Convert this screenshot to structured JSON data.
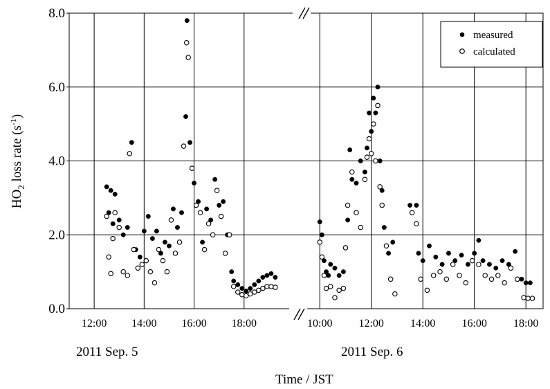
{
  "chart_data": {
    "type": "scatter",
    "ylabel_main": "HO",
    "ylabel_sub": "2",
    "ylabel_rest": " loss rate  (s",
    "ylabel_sup": "-1",
    "ylabel_end": ")",
    "xlabel": "Time / JST",
    "ylim": [
      0,
      8
    ],
    "yticks": [
      "0.0",
      "2.0",
      "4.0",
      "6.0",
      "8.0"
    ],
    "grid": true,
    "legend_position": "top-right",
    "axis_break": "//",
    "panels": [
      {
        "date_label": "2011 Sep. 5",
        "xlim": [
          "11:00",
          "20:00"
        ],
        "xticks": [
          "12:00",
          "14:00",
          "16:00",
          "18:00"
        ]
      },
      {
        "date_label": "2011 Sep. 6",
        "xlim": [
          "9:00",
          "18:40"
        ],
        "xticks": [
          "10:00",
          "12:00",
          "14:00",
          "16:00",
          "18:00"
        ]
      }
    ],
    "series": [
      {
        "name": "measured",
        "marker": "filled-circle",
        "color": "#000000",
        "points": [
          [
            "2011-09-05 12:30",
            3.3
          ],
          [
            "2011-09-05 12:40",
            3.2
          ],
          [
            "2011-09-05 12:50",
            3.1
          ],
          [
            "2011-09-05 12:35",
            2.6
          ],
          [
            "2011-09-05 12:45",
            2.3
          ],
          [
            "2011-09-05 13:00",
            2.4
          ],
          [
            "2011-09-05 13:10",
            2.0
          ],
          [
            "2011-09-05 13:20",
            2.2
          ],
          [
            "2011-09-05 13:30",
            4.5
          ],
          [
            "2011-09-05 13:40",
            1.6
          ],
          [
            "2011-09-05 13:50",
            1.4
          ],
          [
            "2011-09-05 14:00",
            2.1
          ],
          [
            "2011-09-05 14:10",
            2.5
          ],
          [
            "2011-09-05 14:20",
            1.9
          ],
          [
            "2011-09-05 14:30",
            2.1
          ],
          [
            "2011-09-05 14:40",
            1.5
          ],
          [
            "2011-09-05 14:50",
            1.8
          ],
          [
            "2011-09-05 15:00",
            1.7
          ],
          [
            "2011-09-05 15:10",
            2.7
          ],
          [
            "2011-09-05 15:20",
            2.2
          ],
          [
            "2011-09-05 15:30",
            2.6
          ],
          [
            "2011-09-05 15:40",
            5.2
          ],
          [
            "2011-09-05 15:43",
            7.8
          ],
          [
            "2011-09-05 15:50",
            4.5
          ],
          [
            "2011-09-05 16:00",
            3.4
          ],
          [
            "2011-09-05 16:10",
            2.9
          ],
          [
            "2011-09-05 16:20",
            1.8
          ],
          [
            "2011-09-05 16:30",
            2.7
          ],
          [
            "2011-09-05 16:40",
            2.4
          ],
          [
            "2011-09-05 16:50",
            3.5
          ],
          [
            "2011-09-05 17:00",
            2.8
          ],
          [
            "2011-09-05 17:10",
            2.9
          ],
          [
            "2011-09-05 17:20",
            2.0
          ],
          [
            "2011-09-05 17:30",
            1.0
          ],
          [
            "2011-09-05 17:35",
            0.75
          ],
          [
            "2011-09-05 17:45",
            0.65
          ],
          [
            "2011-09-05 17:55",
            0.55
          ],
          [
            "2011-09-05 18:05",
            0.48
          ],
          [
            "2011-09-05 18:15",
            0.55
          ],
          [
            "2011-09-05 18:25",
            0.65
          ],
          [
            "2011-09-05 18:35",
            0.75
          ],
          [
            "2011-09-05 18:45",
            0.85
          ],
          [
            "2011-09-05 18:55",
            0.9
          ],
          [
            "2011-09-05 19:05",
            0.95
          ],
          [
            "2011-09-05 19:15",
            0.85
          ],
          [
            "2011-09-06 10:00",
            2.35
          ],
          [
            "2011-09-06 10:05",
            2.0
          ],
          [
            "2011-09-06 10:10",
            1.3
          ],
          [
            "2011-09-06 10:15",
            1.0
          ],
          [
            "2011-09-06 10:20",
            0.9
          ],
          [
            "2011-09-06 10:25",
            1.2
          ],
          [
            "2011-09-06 10:35",
            1.1
          ],
          [
            "2011-09-06 10:45",
            0.9
          ],
          [
            "2011-09-06 10:55",
            1.0
          ],
          [
            "2011-09-06 11:05",
            2.4
          ],
          [
            "2011-09-06 11:10",
            4.3
          ],
          [
            "2011-09-06 11:15",
            3.5
          ],
          [
            "2011-09-06 11:25",
            3.4
          ],
          [
            "2011-09-06 11:35",
            4.0
          ],
          [
            "2011-09-06 11:45",
            3.7
          ],
          [
            "2011-09-06 11:50",
            4.35
          ],
          [
            "2011-09-06 11:55",
            5.3
          ],
          [
            "2011-09-06 12:00",
            4.8
          ],
          [
            "2011-09-06 12:05",
            5.7
          ],
          [
            "2011-09-06 12:10",
            5.3
          ],
          [
            "2011-09-06 12:15",
            6.0
          ],
          [
            "2011-09-06 12:20",
            4.0
          ],
          [
            "2011-09-06 12:25",
            3.2
          ],
          [
            "2011-09-06 12:30",
            2.2
          ],
          [
            "2011-09-06 12:40",
            1.5
          ],
          [
            "2011-09-06 12:50",
            1.8
          ],
          [
            "2011-09-06 13:30",
            2.8
          ],
          [
            "2011-09-06 13:45",
            2.8
          ],
          [
            "2011-09-06 13:50",
            1.5
          ],
          [
            "2011-09-06 14:00",
            1.3
          ],
          [
            "2011-09-06 14:15",
            1.7
          ],
          [
            "2011-09-06 14:30",
            1.4
          ],
          [
            "2011-09-06 14:45",
            1.2
          ],
          [
            "2011-09-06 15:00",
            1.5
          ],
          [
            "2011-09-06 15:15",
            1.3
          ],
          [
            "2011-09-06 15:30",
            1.45
          ],
          [
            "2011-09-06 15:45",
            1.2
          ],
          [
            "2011-09-06 16:00",
            1.5
          ],
          [
            "2011-09-06 16:10",
            1.85
          ],
          [
            "2011-09-06 16:20",
            1.3
          ],
          [
            "2011-09-06 16:35",
            1.2
          ],
          [
            "2011-09-06 16:50",
            1.1
          ],
          [
            "2011-09-06 17:05",
            1.3
          ],
          [
            "2011-09-06 17:20",
            1.2
          ],
          [
            "2011-09-06 17:35",
            1.55
          ],
          [
            "2011-09-06 17:50",
            0.8
          ],
          [
            "2011-09-06 18:00",
            0.7
          ],
          [
            "2011-09-06 18:10",
            0.7
          ]
        ]
      },
      {
        "name": "calculated",
        "marker": "open-circle",
        "color": "#000000",
        "points": [
          [
            "2011-09-05 12:30",
            2.5
          ],
          [
            "2011-09-05 12:35",
            1.4
          ],
          [
            "2011-09-05 12:40",
            0.95
          ],
          [
            "2011-09-05 12:45",
            1.9
          ],
          [
            "2011-09-05 12:50",
            2.6
          ],
          [
            "2011-09-05 13:00",
            2.2
          ],
          [
            "2011-09-05 13:10",
            1.0
          ],
          [
            "2011-09-05 13:20",
            0.9
          ],
          [
            "2011-09-05 13:25",
            4.2
          ],
          [
            "2011-09-05 13:35",
            1.6
          ],
          [
            "2011-09-05 13:45",
            1.1
          ],
          [
            "2011-09-05 13:55",
            1.2
          ],
          [
            "2011-09-05 14:05",
            1.3
          ],
          [
            "2011-09-05 14:15",
            1.0
          ],
          [
            "2011-09-05 14:25",
            0.7
          ],
          [
            "2011-09-05 14:35",
            1.6
          ],
          [
            "2011-09-05 14:45",
            1.3
          ],
          [
            "2011-09-05 14:55",
            1.0
          ],
          [
            "2011-09-05 15:05",
            2.4
          ],
          [
            "2011-09-05 15:15",
            1.5
          ],
          [
            "2011-09-05 15:25",
            1.8
          ],
          [
            "2011-09-05 15:35",
            4.4
          ],
          [
            "2011-09-05 15:42",
            7.2
          ],
          [
            "2011-09-05 15:46",
            6.8
          ],
          [
            "2011-09-05 15:55",
            3.8
          ],
          [
            "2011-09-05 16:05",
            2.8
          ],
          [
            "2011-09-05 16:15",
            2.6
          ],
          [
            "2011-09-05 16:25",
            1.6
          ],
          [
            "2011-09-05 16:35",
            2.3
          ],
          [
            "2011-09-05 16:45",
            2.0
          ],
          [
            "2011-09-05 16:55",
            3.2
          ],
          [
            "2011-09-05 17:05",
            2.5
          ],
          [
            "2011-09-05 17:15",
            1.5
          ],
          [
            "2011-09-05 17:25",
            2.0
          ],
          [
            "2011-09-05 17:35",
            0.6
          ],
          [
            "2011-09-05 17:45",
            0.45
          ],
          [
            "2011-09-05 17:55",
            0.38
          ],
          [
            "2011-09-05 18:05",
            0.35
          ],
          [
            "2011-09-05 18:15",
            0.4
          ],
          [
            "2011-09-05 18:25",
            0.45
          ],
          [
            "2011-09-05 18:35",
            0.5
          ],
          [
            "2011-09-05 18:45",
            0.55
          ],
          [
            "2011-09-05 18:55",
            0.6
          ],
          [
            "2011-09-05 19:05",
            0.6
          ],
          [
            "2011-09-05 19:15",
            0.58
          ],
          [
            "2011-09-06 10:00",
            1.8
          ],
          [
            "2011-09-06 10:05",
            1.4
          ],
          [
            "2011-09-06 10:10",
            0.9
          ],
          [
            "2011-09-06 10:15",
            0.55
          ],
          [
            "2011-09-06 10:25",
            0.6
          ],
          [
            "2011-09-06 10:35",
            0.3
          ],
          [
            "2011-09-06 10:45",
            0.5
          ],
          [
            "2011-09-06 10:55",
            0.55
          ],
          [
            "2011-09-06 11:00",
            1.65
          ],
          [
            "2011-09-06 11:05",
            2.8
          ],
          [
            "2011-09-06 11:15",
            3.7
          ],
          [
            "2011-09-06 11:25",
            2.6
          ],
          [
            "2011-09-06 11:35",
            2.2
          ],
          [
            "2011-09-06 11:45",
            3.5
          ],
          [
            "2011-09-06 11:50",
            4.1
          ],
          [
            "2011-09-06 11:55",
            4.6
          ],
          [
            "2011-09-06 12:00",
            4.2
          ],
          [
            "2011-09-06 12:05",
            5.0
          ],
          [
            "2011-09-06 12:10",
            4.0
          ],
          [
            "2011-09-06 12:15",
            5.5
          ],
          [
            "2011-09-06 12:20",
            3.3
          ],
          [
            "2011-09-06 12:25",
            2.8
          ],
          [
            "2011-09-06 12:35",
            1.7
          ],
          [
            "2011-09-06 12:45",
            0.8
          ],
          [
            "2011-09-06 12:55",
            0.4
          ],
          [
            "2011-09-06 13:35",
            2.6
          ],
          [
            "2011-09-06 13:45",
            2.3
          ],
          [
            "2011-09-06 13:55",
            0.8
          ],
          [
            "2011-09-06 14:10",
            0.5
          ],
          [
            "2011-09-06 14:25",
            0.9
          ],
          [
            "2011-09-06 14:40",
            1.0
          ],
          [
            "2011-09-06 14:55",
            0.8
          ],
          [
            "2011-09-06 15:10",
            1.2
          ],
          [
            "2011-09-06 15:25",
            0.9
          ],
          [
            "2011-09-06 15:40",
            0.7
          ],
          [
            "2011-09-06 15:55",
            1.3
          ],
          [
            "2011-09-06 16:10",
            1.2
          ],
          [
            "2011-09-06 16:25",
            0.9
          ],
          [
            "2011-09-06 16:40",
            0.8
          ],
          [
            "2011-09-06 16:55",
            0.9
          ],
          [
            "2011-09-06 17:10",
            0.7
          ],
          [
            "2011-09-06 17:25",
            1.1
          ],
          [
            "2011-09-06 17:40",
            0.8
          ],
          [
            "2011-09-06 17:55",
            0.3
          ],
          [
            "2011-09-06 18:05",
            0.28
          ],
          [
            "2011-09-06 18:15",
            0.28
          ]
        ]
      }
    ]
  }
}
